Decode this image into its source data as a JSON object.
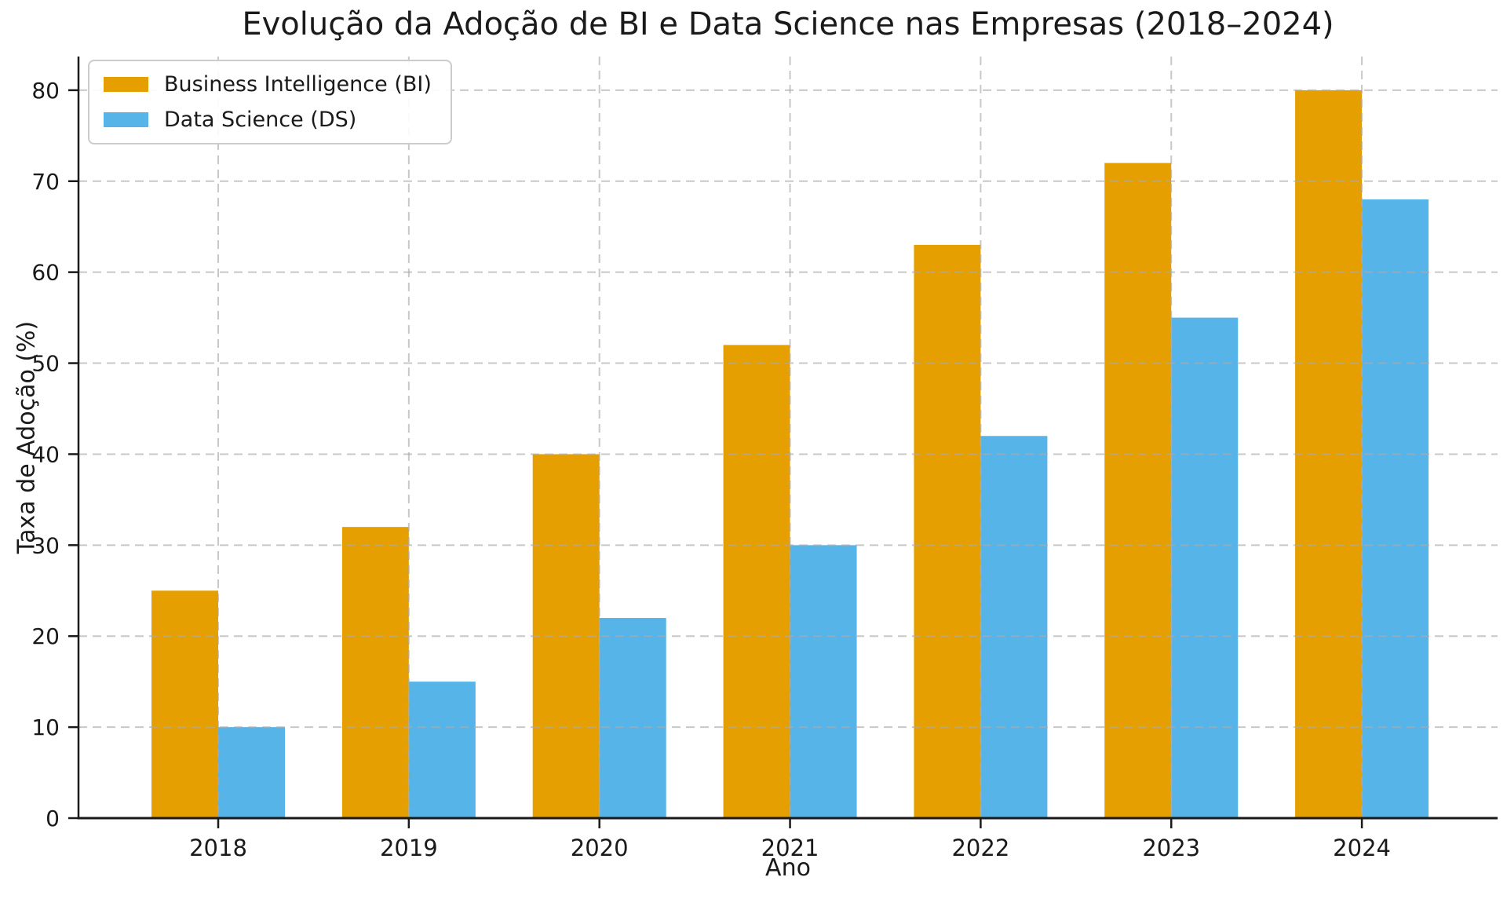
{
  "chart_data": {
    "type": "bar",
    "title": "Evolução da Adoção de BI e Data Science nas Empresas (2018–2024)",
    "xlabel": "Ano",
    "ylabel": "Taxa de Adoção (%)",
    "categories": [
      "2018",
      "2019",
      "2020",
      "2021",
      "2022",
      "2023",
      "2024"
    ],
    "series": [
      {
        "name": "Business Intelligence (BI)",
        "color": "#E69F00",
        "values": [
          25,
          32,
          40,
          52,
          63,
          72,
          80
        ]
      },
      {
        "name": "Data Science (DS)",
        "color": "#56B4E9",
        "values": [
          10,
          15,
          22,
          30,
          42,
          55,
          68
        ]
      }
    ],
    "yticks": [
      0,
      10,
      20,
      30,
      40,
      50,
      60,
      70,
      80
    ],
    "ylim": [
      0,
      83.7
    ],
    "grid": true,
    "grid_style": "dashed",
    "legend_position": "upper left"
  },
  "colors": {
    "text": "#1a1a1a",
    "grid": "#aaaaaa",
    "spine": "#1a1a1a",
    "background": "#ffffff"
  }
}
